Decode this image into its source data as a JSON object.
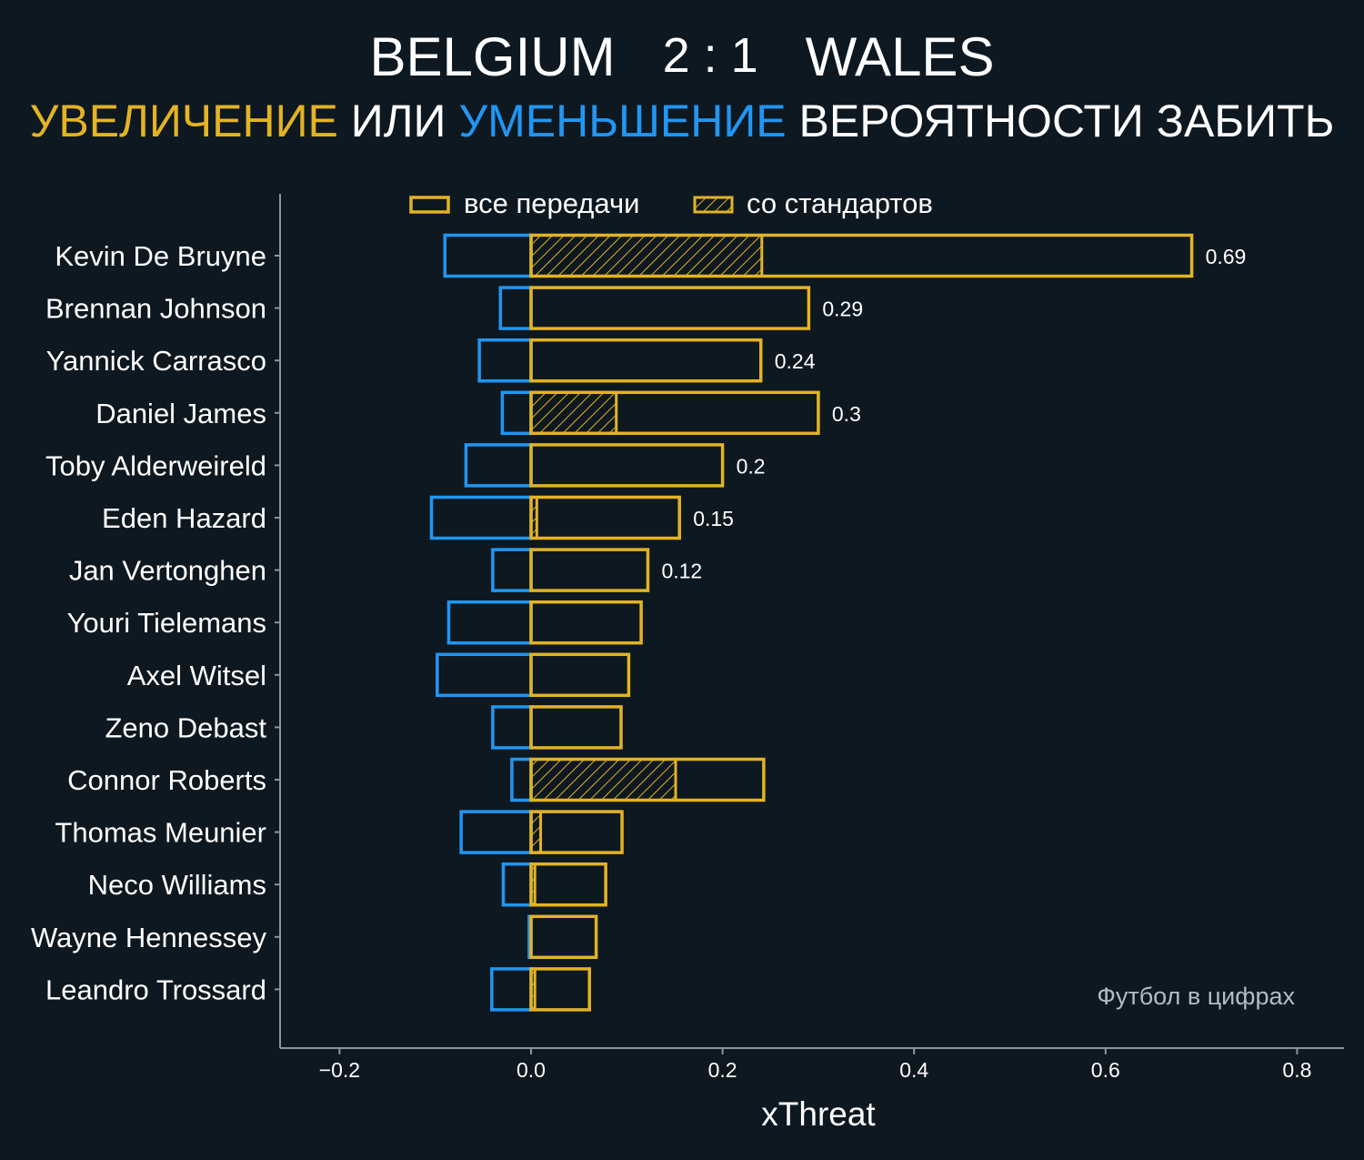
{
  "header": {
    "home_team": "BELGIUM",
    "score": "2 : 1",
    "away_team": "WALES",
    "subtitle_increase": "УВЕЛИЧЕНИЕ",
    "subtitle_or": "ИЛИ",
    "subtitle_decrease": "УМЕНЬШЕНИЕ",
    "subtitle_rest": "ВЕРОЯТНОСТИ ЗАБИТЬ"
  },
  "colors": {
    "background": "#0e1820",
    "increase": "#e3b324",
    "decrease": "#2196f3",
    "axis": "#8a959c",
    "text": "#ffffff",
    "watermark": "#b4bcc2"
  },
  "watermark": "Футбол в цифрах",
  "chart_data": {
    "type": "bar",
    "orientation": "horizontal",
    "xlabel": "xThreat",
    "xlim": [
      -0.26,
      0.85
    ],
    "xticks": [
      -0.2,
      0.0,
      0.2,
      0.4,
      0.6,
      0.8
    ],
    "xtick_labels": [
      "−0.2",
      "0.0",
      "0.2",
      "0.4",
      "0.6",
      "0.8"
    ],
    "legend": {
      "placement": "top-center",
      "entries": [
        "все передачи",
        "со стандартов"
      ]
    },
    "grid": false,
    "categories": [
      "Kevin De Bruyne",
      "Brennan Johnson",
      "Yannick Carrasco",
      "Daniel James",
      "Toby Alderweireld",
      "Eden Hazard",
      "Jan Vertonghen",
      "Youri Tielemans",
      "Axel Witsel",
      "Zeno Debast",
      "Connor Roberts",
      "Thomas Meunier",
      "Neco Williams",
      "Wayne Hennessey",
      "Leandro Trossard"
    ],
    "series": [
      {
        "name": "все передачи",
        "role": "increase",
        "values": [
          0.69,
          0.29,
          0.24,
          0.3,
          0.2,
          0.155,
          0.122,
          0.115,
          0.102,
          0.094,
          0.243,
          0.095,
          0.078,
          0.068,
          0.061
        ]
      },
      {
        "role": "decrease",
        "values": [
          -0.09,
          -0.032,
          -0.054,
          -0.03,
          -0.068,
          -0.104,
          -0.04,
          -0.086,
          -0.098,
          -0.04,
          -0.02,
          -0.073,
          -0.029,
          -0.002,
          -0.041
        ]
      },
      {
        "name": "со стандартов",
        "role": "increase_set_pieces",
        "values": [
          0.241,
          0,
          0,
          0.089,
          0,
          0.006,
          0,
          0,
          0,
          0,
          0.151,
          0.01,
          0.004,
          0,
          0.004
        ]
      }
    ],
    "value_labels": [
      "0.69",
      "0.29",
      "0.24",
      "0.3",
      "0.2",
      "0.15",
      "0.12",
      "",
      "",
      "",
      "",
      "",
      "",
      "",
      ""
    ]
  }
}
